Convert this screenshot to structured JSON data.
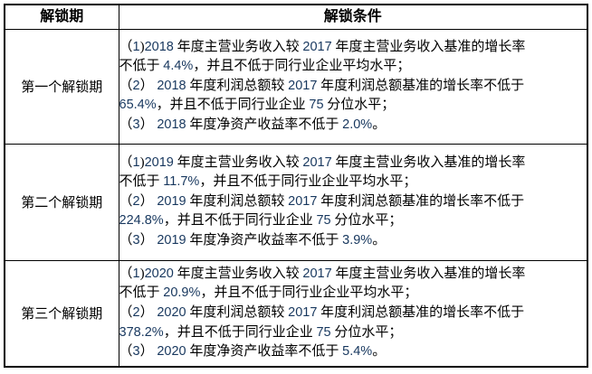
{
  "document": {
    "background_color": "#ffffff",
    "border_color": "#000000",
    "text_color": "#000000",
    "number_color": "#17375E"
  },
  "table": {
    "headers": [
      {
        "label": "解锁期"
      },
      {
        "label": "解锁条件"
      }
    ],
    "rows": [
      {
        "period": "第一个解锁期",
        "conditions": [
          "（1)2018 年度主营业务收入较 2017 年度主营业务收入基准的增长率\n不低于 4.4%，并且不低于同行业企业平均水平；",
          "（2） 2018 年度利润总额较 2017 年度利润总额基准的增长率不低于\n65.4%，并且不低于同行业企业 75 分位水平；",
          "（3） 2018 年度净资产收益率不低于 2.0%。"
        ]
      },
      {
        "period": "第二个解锁期",
        "conditions": [
          "（1)2019 年度主营业务收入较 2017 年度主营业务收入基准的增长率\n不低于 11.7%，并且不低于同行业企业平均水平；",
          "（2） 2019 年度利润总额较 2017 年度利润总额基准的增长率不低于\n224.8%，并且不低于同行业企业 75 分位水平；",
          "（3） 2019 年度净资产收益率不低于 3.9%。"
        ]
      },
      {
        "period": "第三个解锁期",
        "conditions": [
          "（1)2020 年度主营业务收入较 2017 年度主营业务收入基准的增长率\n不低于 20.9%，并且不低于同行业企业平均水平；",
          "（2） 2020 年度利润总额较 2017 年度利润总额基准的增长率不低于\n378.2%，并且不低于同行业企业 75 分位水平；",
          "（3） 2020 年度净资产收益率不低于 5.4%。"
        ]
      }
    ]
  }
}
